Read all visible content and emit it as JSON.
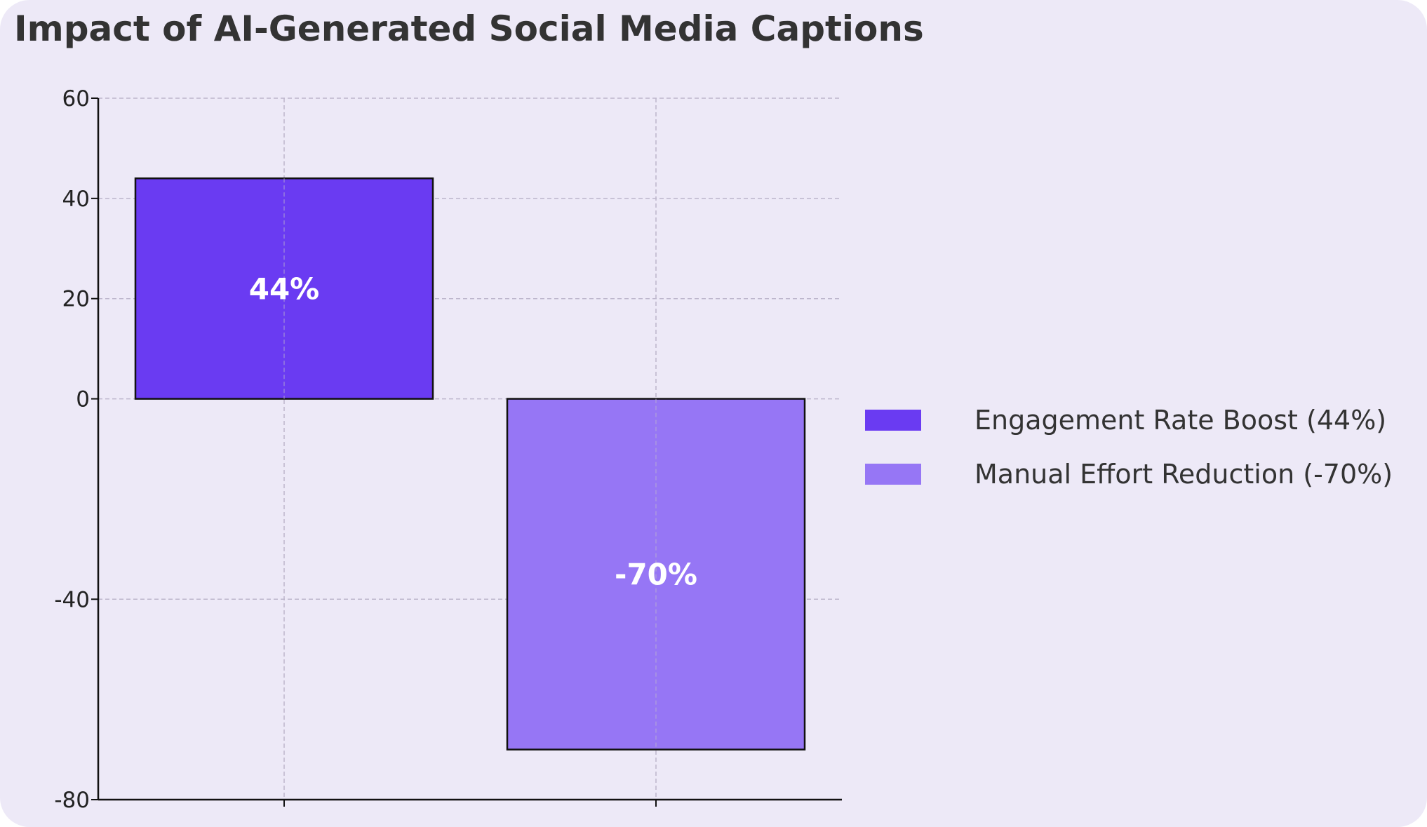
{
  "chart_data": {
    "type": "bar",
    "title": "Impact of AI-Generated Social Media Captions",
    "xlabel": "",
    "ylabel": "",
    "ylim": [
      -80,
      60
    ],
    "yticks": [
      60,
      40,
      20,
      0,
      -40,
      -80
    ],
    "grid": true,
    "legend_position": "right",
    "series": [
      {
        "name": "Engagement Rate Boost (44%)",
        "value": 44,
        "label": "44%",
        "color": "#6a3bf2"
      },
      {
        "name": "Manual Effort Reduction (-70%)",
        "value": -70,
        "label": "-70%",
        "color": "#9676f5"
      }
    ]
  }
}
